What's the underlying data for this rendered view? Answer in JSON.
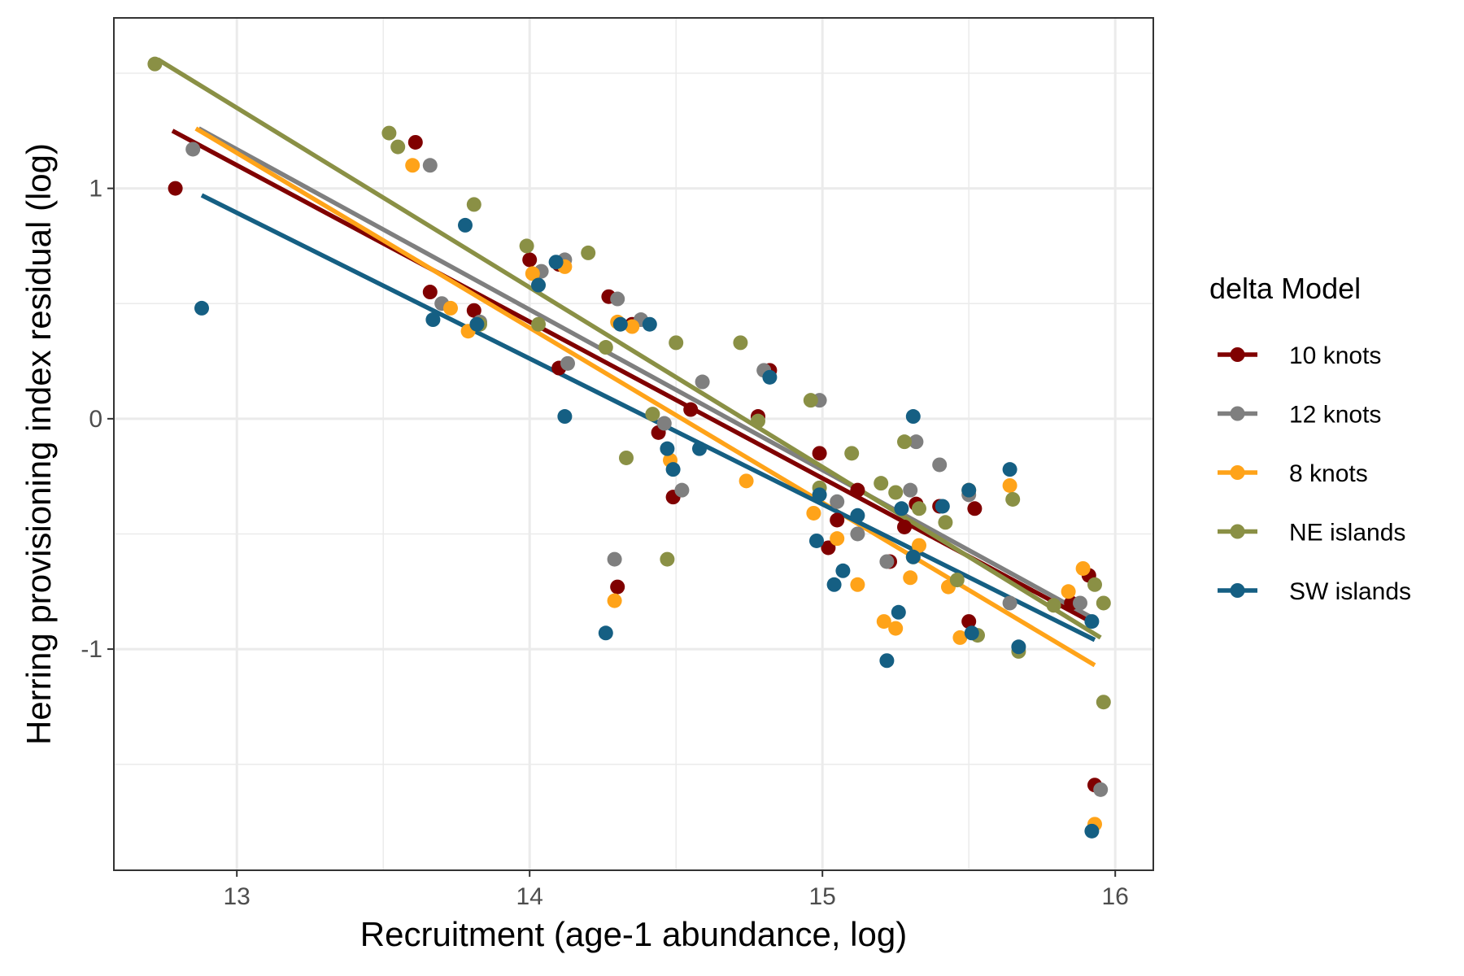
{
  "chart_data": {
    "type": "scatter",
    "xlabel": "Recruitment (age-1 abundance, log)",
    "ylabel": "Herring provisioning index residual (log)",
    "xlim": [
      12.58,
      16.13
    ],
    "ylim": [
      -1.96,
      1.74
    ],
    "xticks": [
      13,
      14,
      15,
      16
    ],
    "xtick_labels": [
      "13",
      "14",
      "15",
      "16"
    ],
    "yticks": [
      -1,
      0,
      1
    ],
    "ytick_labels": [
      "-1",
      "0",
      "1"
    ],
    "grid": true,
    "legend_title": "delta Model",
    "legend_position": "right",
    "series": [
      {
        "name": "10 knots",
        "color": "#800000",
        "trend": [
          [
            12.78,
            1.25
          ],
          [
            15.93,
            -0.89
          ]
        ],
        "points": [
          [
            12.79,
            1.0
          ],
          [
            13.61,
            1.2
          ],
          [
            13.66,
            0.55
          ],
          [
            13.81,
            0.47
          ],
          [
            14.0,
            0.69
          ],
          [
            14.1,
            0.22
          ],
          [
            14.1,
            0.67
          ],
          [
            14.27,
            0.53
          ],
          [
            14.3,
            -0.73
          ],
          [
            14.35,
            0.41
          ],
          [
            14.44,
            -0.06
          ],
          [
            14.49,
            -0.34
          ],
          [
            14.55,
            0.04
          ],
          [
            14.78,
            0.01
          ],
          [
            14.82,
            0.21
          ],
          [
            14.99,
            -0.15
          ],
          [
            15.02,
            -0.56
          ],
          [
            15.05,
            -0.44
          ],
          [
            15.12,
            -0.31
          ],
          [
            15.23,
            -0.62
          ],
          [
            15.28,
            -0.47
          ],
          [
            15.32,
            -0.37
          ],
          [
            15.4,
            -0.38
          ],
          [
            15.5,
            -0.88
          ],
          [
            15.52,
            -0.39
          ],
          [
            15.85,
            -0.8
          ],
          [
            15.91,
            -0.68
          ],
          [
            15.93,
            -1.59
          ]
        ]
      },
      {
        "name": "12 knots",
        "color": "#7f7f7f",
        "trend": [
          [
            12.87,
            1.26
          ],
          [
            15.93,
            -0.87
          ]
        ],
        "points": [
          [
            12.85,
            1.17
          ],
          [
            13.66,
            1.1
          ],
          [
            13.7,
            0.5
          ],
          [
            13.83,
            0.42
          ],
          [
            14.04,
            0.64
          ],
          [
            14.12,
            0.69
          ],
          [
            14.13,
            0.24
          ],
          [
            14.29,
            -0.61
          ],
          [
            14.3,
            0.52
          ],
          [
            14.38,
            0.43
          ],
          [
            14.46,
            -0.02
          ],
          [
            14.52,
            -0.31
          ],
          [
            14.59,
            0.16
          ],
          [
            14.8,
            0.21
          ],
          [
            14.99,
            0.08
          ],
          [
            15.05,
            -0.36
          ],
          [
            15.12,
            -0.5
          ],
          [
            15.22,
            -0.62
          ],
          [
            15.3,
            -0.31
          ],
          [
            15.32,
            -0.1
          ],
          [
            15.4,
            -0.2
          ],
          [
            15.5,
            -0.33
          ],
          [
            15.64,
            -0.8
          ],
          [
            15.88,
            -0.8
          ],
          [
            15.95,
            -1.61
          ]
        ]
      },
      {
        "name": "8 knots",
        "color": "#ffa319",
        "trend": [
          [
            12.86,
            1.26
          ],
          [
            15.93,
            -1.07
          ]
        ],
        "points": [
          [
            13.6,
            1.1
          ],
          [
            13.73,
            0.48
          ],
          [
            13.79,
            0.38
          ],
          [
            14.01,
            0.63
          ],
          [
            14.12,
            0.66
          ],
          [
            14.29,
            -0.79
          ],
          [
            14.3,
            0.42
          ],
          [
            14.35,
            0.4
          ],
          [
            14.48,
            -0.18
          ],
          [
            14.74,
            -0.27
          ],
          [
            14.97,
            -0.41
          ],
          [
            15.05,
            -0.52
          ],
          [
            15.12,
            -0.72
          ],
          [
            15.21,
            -0.88
          ],
          [
            15.25,
            -0.91
          ],
          [
            15.3,
            -0.69
          ],
          [
            15.31,
            -0.6
          ],
          [
            15.33,
            -0.55
          ],
          [
            15.43,
            -0.73
          ],
          [
            15.47,
            -0.95
          ],
          [
            15.5,
            -0.31
          ],
          [
            15.64,
            -0.29
          ],
          [
            15.84,
            -0.75
          ],
          [
            15.89,
            -0.65
          ],
          [
            15.93,
            -1.76
          ]
        ]
      },
      {
        "name": "NE islands",
        "color": "#8a9045",
        "trend": [
          [
            12.73,
            1.56
          ],
          [
            15.95,
            -0.95
          ]
        ],
        "points": [
          [
            12.72,
            1.54
          ],
          [
            13.52,
            1.24
          ],
          [
            13.55,
            1.18
          ],
          [
            13.81,
            0.93
          ],
          [
            13.83,
            0.41
          ],
          [
            13.99,
            0.75
          ],
          [
            14.03,
            0.41
          ],
          [
            14.2,
            0.72
          ],
          [
            14.26,
            0.31
          ],
          [
            14.33,
            -0.17
          ],
          [
            14.42,
            0.02
          ],
          [
            14.47,
            -0.61
          ],
          [
            14.5,
            0.33
          ],
          [
            14.72,
            0.33
          ],
          [
            14.78,
            -0.01
          ],
          [
            14.96,
            0.08
          ],
          [
            14.99,
            -0.3
          ],
          [
            15.1,
            -0.15
          ],
          [
            15.2,
            -0.28
          ],
          [
            15.25,
            -0.32
          ],
          [
            15.28,
            -0.1
          ],
          [
            15.33,
            -0.39
          ],
          [
            15.42,
            -0.45
          ],
          [
            15.46,
            -0.7
          ],
          [
            15.53,
            -0.94
          ],
          [
            15.65,
            -0.35
          ],
          [
            15.67,
            -1.01
          ],
          [
            15.79,
            -0.81
          ],
          [
            15.93,
            -0.72
          ],
          [
            15.96,
            -0.8
          ],
          [
            15.96,
            -1.23
          ]
        ]
      },
      {
        "name": "SW islands",
        "color": "#155f83",
        "trend": [
          [
            12.88,
            0.97
          ],
          [
            15.93,
            -0.96
          ]
        ],
        "points": [
          [
            12.88,
            0.48
          ],
          [
            13.67,
            0.43
          ],
          [
            13.78,
            0.84
          ],
          [
            13.82,
            0.41
          ],
          [
            14.03,
            0.58
          ],
          [
            14.09,
            0.68
          ],
          [
            14.12,
            0.01
          ],
          [
            14.26,
            -0.93
          ],
          [
            14.31,
            0.41
          ],
          [
            14.41,
            0.41
          ],
          [
            14.47,
            -0.13
          ],
          [
            14.49,
            -0.22
          ],
          [
            14.58,
            -0.13
          ],
          [
            14.82,
            0.18
          ],
          [
            14.98,
            -0.53
          ],
          [
            14.99,
            -0.33
          ],
          [
            15.04,
            -0.72
          ],
          [
            15.07,
            -0.66
          ],
          [
            15.12,
            -0.42
          ],
          [
            15.22,
            -1.05
          ],
          [
            15.26,
            -0.84
          ],
          [
            15.27,
            -0.39
          ],
          [
            15.31,
            0.01
          ],
          [
            15.31,
            -0.6
          ],
          [
            15.41,
            -0.38
          ],
          [
            15.5,
            -0.31
          ],
          [
            15.51,
            -0.93
          ],
          [
            15.64,
            -0.22
          ],
          [
            15.67,
            -0.99
          ],
          [
            15.92,
            -0.88
          ],
          [
            15.92,
            -1.79
          ]
        ]
      }
    ]
  }
}
